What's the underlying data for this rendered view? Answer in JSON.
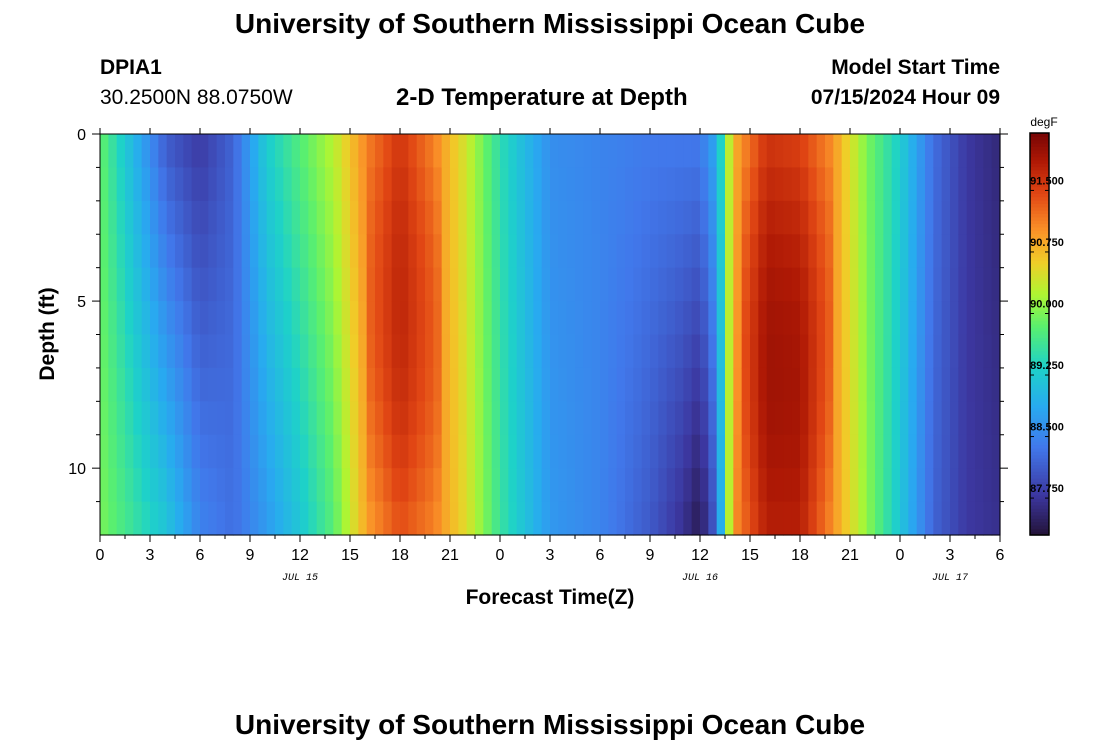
{
  "header": {
    "title": "University of Southern Mississippi Ocean Cube",
    "station_id": "DPIA1",
    "coords": "30.2500N  88.0750W",
    "plot_title": "2-D Temperature at Depth",
    "model_start_label": "Model Start Time",
    "model_start_value": "07/15/2024 Hour 09"
  },
  "footer": {
    "title": "University of Southern Mississippi Ocean Cube"
  },
  "chart_data": {
    "type": "heatmap",
    "title": "2-D Temperature at Depth",
    "xlabel": "Forecast Time(Z)",
    "ylabel": "Depth (ft)",
    "x_tick_labels": [
      "0",
      "3",
      "6",
      "9",
      "12",
      "15",
      "18",
      "21",
      "0",
      "3",
      "6",
      "9",
      "12",
      "15",
      "18",
      "21",
      "0",
      "3",
      "6"
    ],
    "x_range_hours": [
      0,
      54
    ],
    "date_labels": [
      {
        "text": "JUL 15",
        "hour": 12
      },
      {
        "text": "JUL 16",
        "hour": 36
      },
      {
        "text": "JUL 17",
        "hour": 51
      }
    ],
    "y_ticks": [
      0,
      5,
      10
    ],
    "y_range_ft": [
      0,
      12
    ],
    "colorbar": {
      "unit": "degF",
      "min": 87.3,
      "max": 92.2,
      "tick_values": [
        91.5,
        90.75,
        90.0,
        89.25,
        88.5,
        87.75
      ],
      "tick_labels": [
        "91.500",
        "90.750",
        "90.000",
        "89.250",
        "88.500",
        "87.750"
      ]
    },
    "temperature_profile_degF": {
      "description": "Approximate surface temperature by forecast hour; lower depths modulated as shown",
      "hours": [
        0,
        2,
        4,
        6,
        8,
        10,
        12,
        14,
        16,
        18,
        20,
        22,
        24,
        27,
        30,
        33,
        35,
        36,
        37,
        38,
        40,
        42,
        44,
        46,
        48,
        50,
        52,
        54
      ],
      "surface": [
        89.9,
        89.0,
        88.1,
        87.8,
        88.2,
        89.3,
        89.8,
        90.3,
        91.1,
        91.6,
        91.1,
        90.4,
        89.5,
        88.6,
        88.5,
        88.4,
        88.4,
        88.4,
        88.9,
        90.8,
        91.6,
        91.5,
        91.0,
        90.0,
        89.3,
        88.3,
        87.8,
        87.6
      ],
      "bottom": [
        90.0,
        89.6,
        89.2,
        88.5,
        88.3,
        88.7,
        89.2,
        89.8,
        90.9,
        91.4,
        91.1,
        90.5,
        89.6,
        88.7,
        88.5,
        88.1,
        87.7,
        87.4,
        88.2,
        91.0,
        91.8,
        91.8,
        91.0,
        90.1,
        89.2,
        88.2,
        87.8,
        87.7
      ]
    }
  }
}
